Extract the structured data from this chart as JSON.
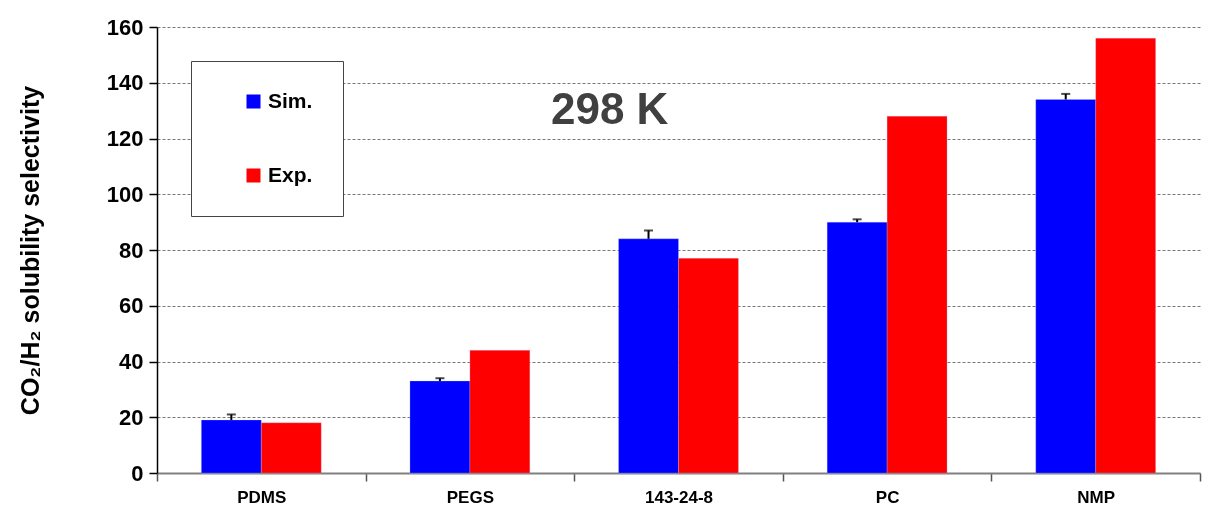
{
  "chart_data": {
    "type": "bar",
    "ylabel": "CO₂/H₂ solubility selectivity",
    "categories": [
      "PDMS",
      "PEGS",
      "143-24-8",
      "PC",
      "NMP"
    ],
    "series": [
      {
        "name": "Sim.",
        "color": "#0000ff",
        "values": [
          19,
          33,
          84,
          90,
          134
        ],
        "errors": [
          [
            19,
            21
          ],
          [
            33,
            34
          ],
          [
            84,
            87
          ],
          [
            90,
            91
          ],
          [
            134,
            136
          ]
        ]
      },
      {
        "name": "Exp.",
        "color": "#ff0000",
        "values": [
          18,
          44,
          77,
          128,
          156
        ]
      }
    ],
    "ylim": [
      0,
      160
    ],
    "yticks": [
      0,
      20,
      40,
      60,
      80,
      100,
      120,
      140,
      160
    ],
    "grid": "y",
    "legend": "top left",
    "annotations": [
      "298 K"
    ]
  }
}
